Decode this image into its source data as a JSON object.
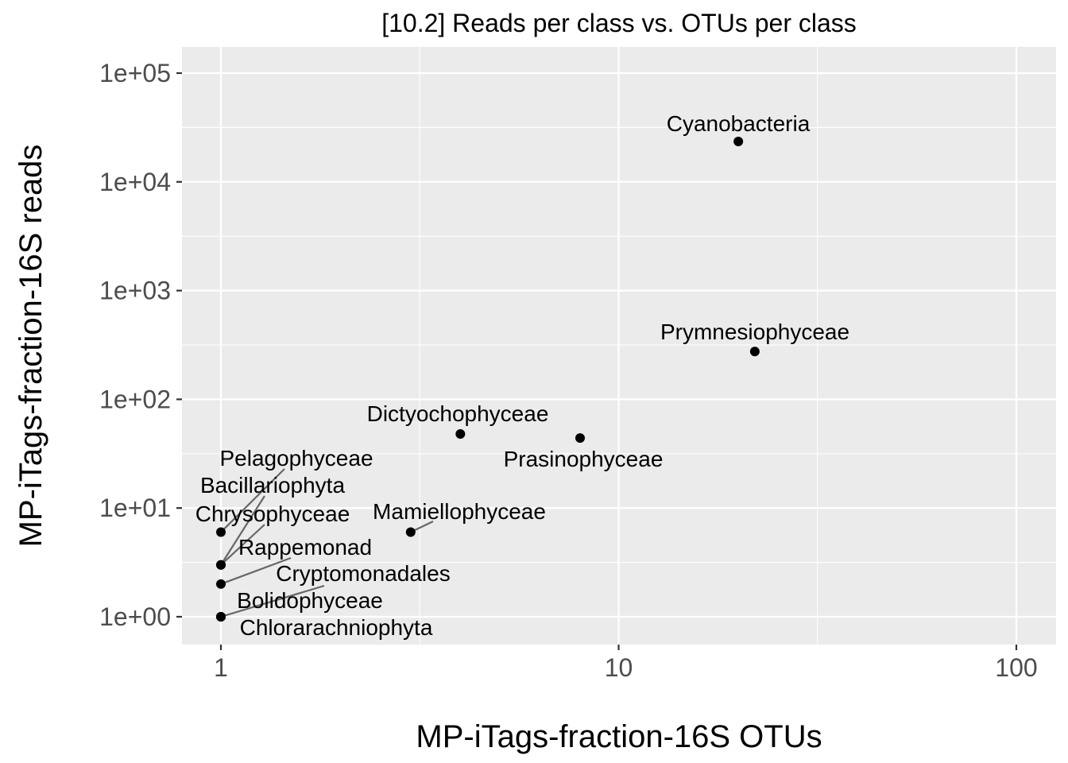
{
  "chart_data": {
    "type": "scatter",
    "title": "[10.2] Reads per class vs. OTUs per class",
    "xlabel": "MP-iTags-fraction-16S OTUs",
    "ylabel": "MP-iTags-fraction-16S reads",
    "x_scale": "log10",
    "y_scale": "log10",
    "xlim": [
      0.8,
      125
    ],
    "ylim": [
      0.5,
      125000
    ],
    "x_ticks": [
      1,
      10,
      100
    ],
    "x_tick_labels": [
      "1",
      "10",
      "100"
    ],
    "y_ticks": [
      1,
      10,
      100,
      1000,
      10000,
      100000
    ],
    "y_tick_labels": [
      "1e+00",
      "1e+01",
      "1e+02",
      "1e+03",
      "1e+04",
      "1e+05"
    ],
    "grid": true,
    "points": [
      {
        "label": "Cyanobacteria",
        "x": 20,
        "y": 23500
      },
      {
        "label": "Prymnesiophyceae",
        "x": 22,
        "y": 275
      },
      {
        "label": "Dictyochophyceae",
        "x": 4,
        "y": 48
      },
      {
        "label": "Prasinophyceae",
        "x": 8,
        "y": 44
      },
      {
        "label": "Mamiellophyceae",
        "x": 3,
        "y": 6
      },
      {
        "label": "Pelagophyceae",
        "x": 1,
        "y": 6
      },
      {
        "label": "Bacillariophyta",
        "x": 1,
        "y": 3
      },
      {
        "label": "Chrysophyceae",
        "x": 1,
        "y": 3
      },
      {
        "label": "Rappemonad",
        "x": 1,
        "y": 2
      },
      {
        "label": "Cryptomonadales",
        "x": 1,
        "y": 1
      },
      {
        "label": "Bolidophyceae",
        "x": 1,
        "y": 1
      },
      {
        "label": "Chlorarachniophyta",
        "x": 1,
        "y": 1
      }
    ]
  }
}
